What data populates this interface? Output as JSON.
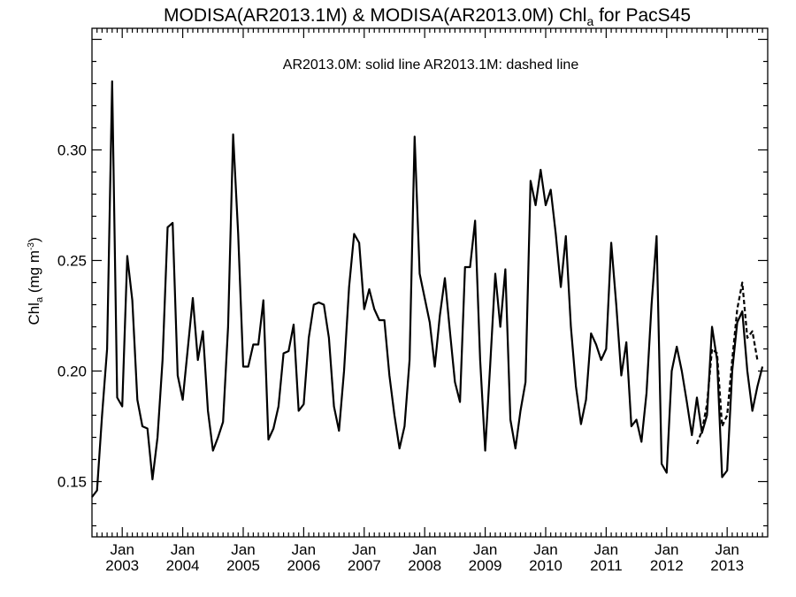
{
  "chart_data": {
    "type": "line",
    "title": {
      "main": "MODISA(AR2013.1M) & MODISA(AR2013.0M)  Chl",
      "sub": "a",
      "tail": " for PacS45"
    },
    "ylabel": {
      "main": "Chl",
      "sub": "a",
      "unit": " (mg m",
      "sup": "-3",
      "close": ")"
    },
    "annotation": "AR2013.0M: solid line   AR2013.1M: dashed line",
    "ylim": [
      0.125,
      0.355
    ],
    "y_ticks": [
      0.15,
      0.2,
      0.25,
      0.3
    ],
    "y_tick_labels": [
      "0.15",
      "0.20",
      "0.25",
      "0.30"
    ],
    "x_range": [
      2002.5,
      2013.67
    ],
    "x_ticks": [
      {
        "month": "Jan",
        "year": "2003"
      },
      {
        "month": "Jan",
        "year": "2004"
      },
      {
        "month": "Jan",
        "year": "2005"
      },
      {
        "month": "Jan",
        "year": "2006"
      },
      {
        "month": "Jan",
        "year": "2007"
      },
      {
        "month": "Jan",
        "year": "2008"
      },
      {
        "month": "Jan",
        "year": "2009"
      },
      {
        "month": "Jan",
        "year": "2010"
      },
      {
        "month": "Jan",
        "year": "2011"
      },
      {
        "month": "Jan",
        "year": "2012"
      },
      {
        "month": "Jan",
        "year": "2013"
      }
    ],
    "series": [
      {
        "name": "AR2013.0M",
        "style": "solid",
        "color": "#000000",
        "start": "2002-07",
        "values": [
          0.143,
          0.146,
          0.18,
          0.21,
          0.331,
          0.188,
          0.184,
          0.252,
          0.232,
          0.187,
          0.175,
          0.174,
          0.151,
          0.17,
          0.205,
          0.265,
          0.267,
          0.198,
          0.187,
          0.21,
          0.233,
          0.205,
          0.218,
          0.182,
          0.164,
          0.17,
          0.177,
          0.22,
          0.307,
          0.262,
          0.202,
          0.202,
          0.212,
          0.212,
          0.232,
          0.169,
          0.174,
          0.184,
          0.208,
          0.209,
          0.221,
          0.182,
          0.185,
          0.215,
          0.23,
          0.231,
          0.23,
          0.215,
          0.184,
          0.173,
          0.2,
          0.238,
          0.262,
          0.258,
          0.228,
          0.237,
          0.228,
          0.223,
          0.223,
          0.198,
          0.18,
          0.165,
          0.175,
          0.205,
          0.306,
          0.244,
          0.233,
          0.222,
          0.202,
          0.225,
          0.242,
          0.218,
          0.195,
          0.186,
          0.247,
          0.247,
          0.268,
          0.205,
          0.164,
          0.203,
          0.244,
          0.22,
          0.246,
          0.178,
          0.165,
          0.182,
          0.195,
          0.286,
          0.275,
          0.291,
          0.275,
          0.282,
          0.262,
          0.238,
          0.261,
          0.22,
          0.193,
          0.176,
          0.187,
          0.217,
          0.212,
          0.205,
          0.21,
          0.258,
          0.23,
          0.198,
          0.213,
          0.175,
          0.178,
          0.168,
          0.19,
          0.23,
          0.261,
          0.158,
          0.154,
          0.2,
          0.211,
          0.2,
          0.186,
          0.171,
          0.188,
          0.172,
          0.18,
          0.22,
          0.205,
          0.152,
          0.155,
          0.2,
          0.222,
          0.227,
          0.2,
          0.182,
          0.193,
          0.202
        ]
      },
      {
        "name": "AR2013.1M",
        "style": "dashed",
        "color": "#000000",
        "start": "2012-07",
        "values": [
          0.167,
          0.173,
          0.185,
          0.21,
          0.208,
          0.175,
          0.18,
          0.205,
          0.228,
          0.24,
          0.215,
          0.218,
          0.205
        ]
      }
    ]
  }
}
